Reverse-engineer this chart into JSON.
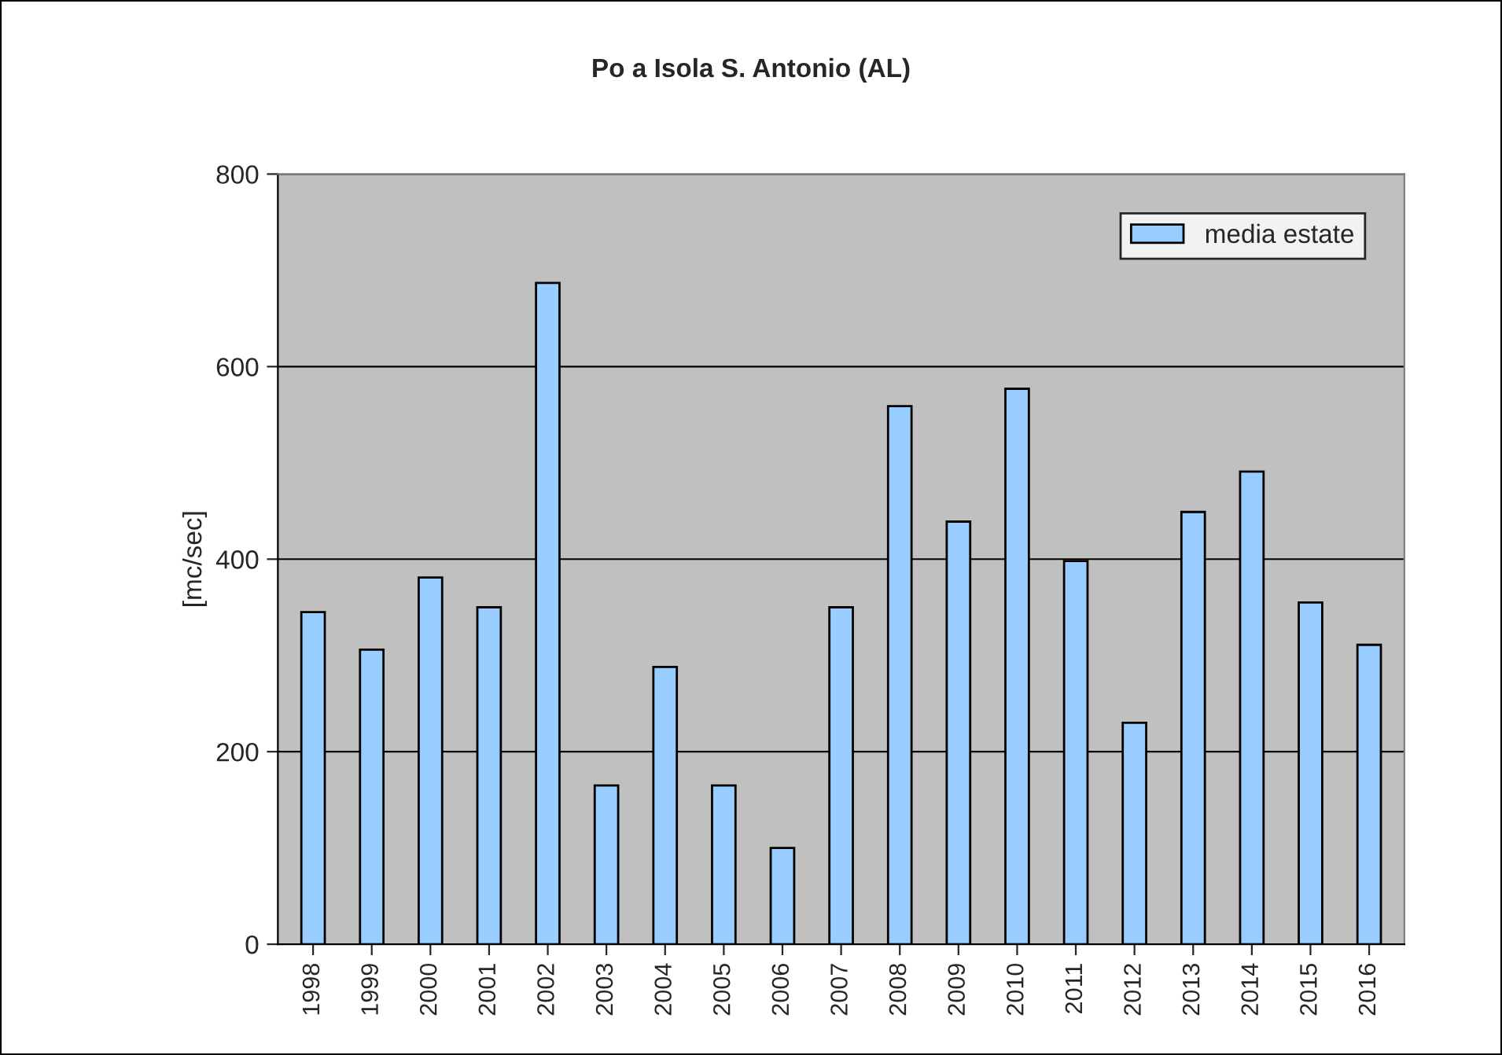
{
  "chart_data": {
    "type": "bar",
    "title": "Po a Isola S. Antonio (AL)",
    "ylabel": "[mc/sec]",
    "categories": [
      "1998",
      "1999",
      "2000",
      "2001",
      "2002",
      "2003",
      "2004",
      "2005",
      "2006",
      "2007",
      "2008",
      "2009",
      "2010",
      "2011",
      "2012",
      "2013",
      "2014",
      "2015",
      "2016"
    ],
    "series": [
      {
        "name": "media estate",
        "color": "#99ccff",
        "values": [
          345,
          306,
          381,
          350,
          687,
          165,
          288,
          165,
          100,
          350,
          559,
          439,
          577,
          398,
          230,
          449,
          491,
          355,
          311
        ]
      }
    ],
    "ylim": [
      0,
      800
    ],
    "yticks": [
      0,
      200,
      400,
      600,
      800
    ],
    "grid": "y",
    "legend": "top right"
  }
}
